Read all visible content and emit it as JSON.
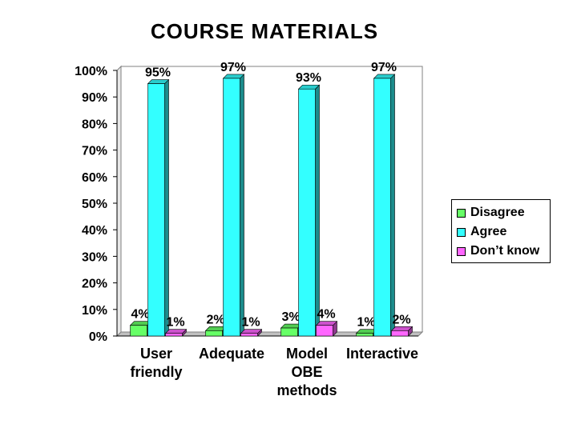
{
  "chart_data": {
    "type": "bar",
    "title": "COURSE MATERIALS",
    "categories": [
      "User friendly",
      "Adequate",
      "Model OBE methods",
      "Interactive"
    ],
    "category_lines": [
      [
        "User",
        "friendly"
      ],
      [
        "Adequate"
      ],
      [
        "Model",
        "OBE",
        "methods"
      ],
      [
        "Interactive"
      ]
    ],
    "series": [
      {
        "name": "Disagree",
        "values": [
          4,
          2,
          3,
          1
        ],
        "labels": [
          "4%",
          "2%",
          "3%",
          "1%"
        ],
        "color": "#66ff66"
      },
      {
        "name": "Agree",
        "values": [
          95,
          97,
          93,
          97
        ],
        "labels": [
          "95%",
          "97%",
          "93%",
          "97%"
        ],
        "color": "#33ffff"
      },
      {
        "name": "Don’t know",
        "values": [
          1,
          1,
          4,
          2
        ],
        "labels": [
          "1%",
          "1%",
          "4%",
          "2%"
        ],
        "color": "#ff66ff"
      }
    ],
    "yticks": [
      "0%",
      "10%",
      "20%",
      "30%",
      "40%",
      "50%",
      "60%",
      "70%",
      "80%",
      "90%",
      "100%"
    ],
    "ylim": [
      0,
      100
    ],
    "xlabel": "",
    "ylabel": "",
    "grid": false,
    "legend_position": "right"
  }
}
